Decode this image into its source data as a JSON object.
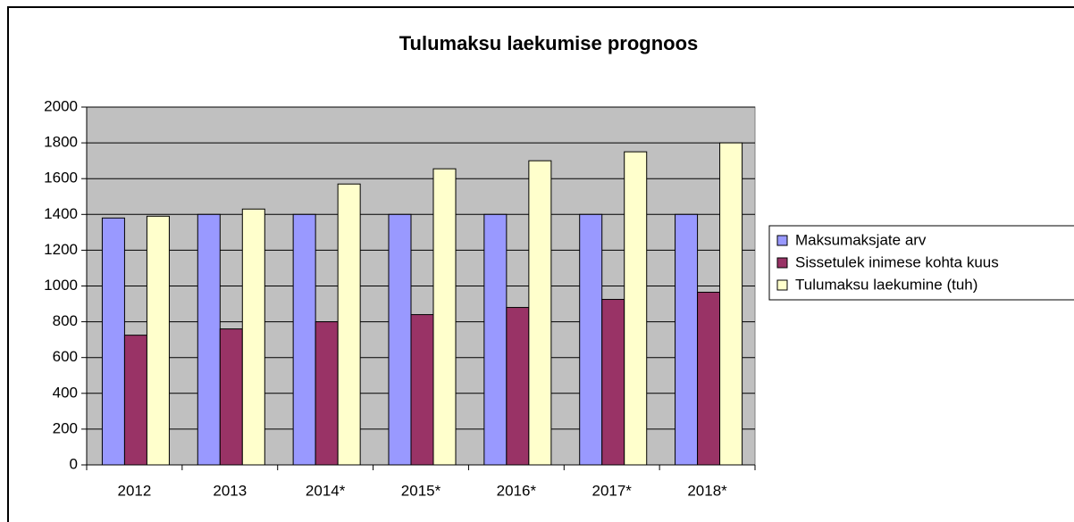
{
  "chart_data": {
    "type": "bar",
    "title": "Tulumaksu laekumise prognoos",
    "categories": [
      "2012",
      "2013",
      "2014*",
      "2015*",
      "2016*",
      "2017*",
      "2018*"
    ],
    "series": [
      {
        "name": "Maksumaksjate arv",
        "color": "#9999ff",
        "values": [
          1380,
          1400,
          1400,
          1400,
          1400,
          1400,
          1400
        ]
      },
      {
        "name": "Sissetulek inimese kohta kuus",
        "color": "#993366",
        "values": [
          725,
          760,
          800,
          840,
          880,
          925,
          965
        ]
      },
      {
        "name": "Tulumaksu laekumine (tuh)",
        "color": "#ffffcc",
        "values": [
          1390,
          1430,
          1570,
          1655,
          1700,
          1750,
          1800
        ]
      }
    ],
    "ylim": [
      0,
      2000
    ],
    "yticks": [
      0,
      200,
      400,
      600,
      800,
      1000,
      1200,
      1400,
      1600,
      1800,
      2000
    ],
    "grid": true,
    "legend": "right",
    "plot_background": "#c0c0c0"
  }
}
